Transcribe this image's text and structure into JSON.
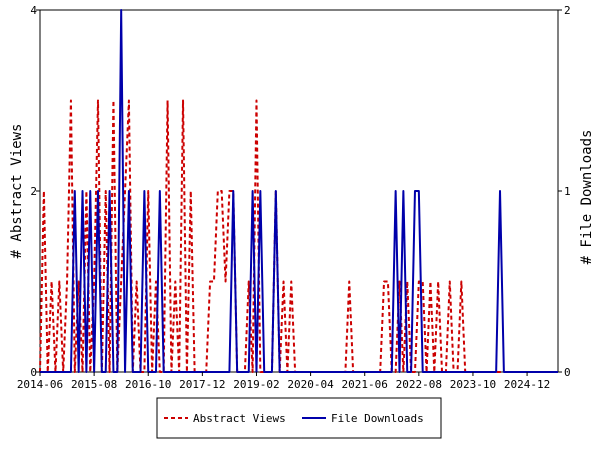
{
  "chart_data": {
    "type": "line",
    "x_ticks": [
      "2014-06",
      "2015-08",
      "2016-10",
      "2017-12",
      "2019-02",
      "2020-04",
      "2021-06",
      "2022-08",
      "2023-10",
      "2024-12"
    ],
    "x_range": [
      "2014-06",
      "2025-08"
    ],
    "y_left": {
      "label": "# Abstract Views",
      "ticks": [
        "0",
        "2",
        "4"
      ],
      "range": [
        0,
        4
      ]
    },
    "y_right": {
      "label": "# File Downloads",
      "ticks": [
        "0",
        "1",
        "2"
      ],
      "range": [
        0,
        2
      ]
    },
    "grid": false,
    "legend_position": "bottom-center",
    "series": [
      {
        "name": "Abstract Views",
        "axis": "left",
        "color": "#cc0000",
        "style": "dashed",
        "points": [
          [
            "2014-06",
            0
          ],
          [
            "2014-07",
            2
          ],
          [
            "2014-08",
            0
          ],
          [
            "2014-09",
            1
          ],
          [
            "2014-10",
            0
          ],
          [
            "2014-11",
            1
          ],
          [
            "2014-12",
            0
          ],
          [
            "2015-01",
            1
          ],
          [
            "2015-02",
            3
          ],
          [
            "2015-03",
            0
          ],
          [
            "2015-04",
            1
          ],
          [
            "2015-05",
            0
          ],
          [
            "2015-06",
            2
          ],
          [
            "2015-07",
            0
          ],
          [
            "2015-08",
            1
          ],
          [
            "2015-09",
            3
          ],
          [
            "2015-10",
            0
          ],
          [
            "2015-11",
            2
          ],
          [
            "2015-12",
            0
          ],
          [
            "2016-01",
            3
          ],
          [
            "2016-02",
            0
          ],
          [
            "2016-03",
            1
          ],
          [
            "2016-04",
            2
          ],
          [
            "2016-05",
            3
          ],
          [
            "2016-06",
            0
          ],
          [
            "2016-07",
            1
          ],
          [
            "2016-08",
            0
          ],
          [
            "2016-09",
            0
          ],
          [
            "2016-10",
            2
          ],
          [
            "2016-11",
            0
          ],
          [
            "2016-12",
            1
          ],
          [
            "2017-01",
            0
          ],
          [
            "2017-02",
            0
          ],
          [
            "2017-03",
            3
          ],
          [
            "2017-04",
            0
          ],
          [
            "2017-05",
            1
          ],
          [
            "2017-06",
            0
          ],
          [
            "2017-07",
            3
          ],
          [
            "2017-08",
            0
          ],
          [
            "2017-09",
            2
          ],
          [
            "2017-10",
            0
          ],
          [
            "2017-11",
            0
          ],
          [
            "2017-12",
            0
          ],
          [
            "2018-01",
            0
          ],
          [
            "2018-02",
            1
          ],
          [
            "2018-03",
            1
          ],
          [
            "2018-04",
            2
          ],
          [
            "2018-05",
            2
          ],
          [
            "2018-06",
            1
          ],
          [
            "2018-07",
            2
          ],
          [
            "2018-08",
            2
          ],
          [
            "2018-09",
            0
          ],
          [
            "2018-10",
            0
          ],
          [
            "2018-11",
            0
          ],
          [
            "2018-12",
            1
          ],
          [
            "2019-01",
            0
          ],
          [
            "2019-02",
            3
          ],
          [
            "2019-03",
            0
          ],
          [
            "2019-04",
            0
          ],
          [
            "2019-05",
            0
          ],
          [
            "2019-06",
            0
          ],
          [
            "2019-07",
            2
          ],
          [
            "2019-08",
            0
          ],
          [
            "2019-09",
            1
          ],
          [
            "2019-10",
            0
          ],
          [
            "2019-11",
            1
          ],
          [
            "2019-12",
            0
          ],
          [
            "2020-01",
            0
          ],
          [
            "2020-02",
            0
          ],
          [
            "2020-03",
            0
          ],
          [
            "2020-04",
            0
          ],
          [
            "2020-05",
            0
          ],
          [
            "2020-06",
            0
          ],
          [
            "2020-07",
            0
          ],
          [
            "2020-08",
            0
          ],
          [
            "2020-09",
            0
          ],
          [
            "2020-10",
            0
          ],
          [
            "2020-11",
            0
          ],
          [
            "2020-12",
            0
          ],
          [
            "2021-01",
            0
          ],
          [
            "2021-02",
            1
          ],
          [
            "2021-03",
            0
          ],
          [
            "2021-04",
            0
          ],
          [
            "2021-05",
            0
          ],
          [
            "2021-06",
            0
          ],
          [
            "2021-07",
            0
          ],
          [
            "2021-08",
            0
          ],
          [
            "2021-09",
            0
          ],
          [
            "2021-10",
            0
          ],
          [
            "2021-11",
            1
          ],
          [
            "2021-12",
            1
          ],
          [
            "2022-01",
            0
          ],
          [
            "2022-02",
            0
          ],
          [
            "2022-03",
            1
          ],
          [
            "2022-04",
            0
          ],
          [
            "2022-05",
            1
          ],
          [
            "2022-06",
            0
          ],
          [
            "2022-07",
            0
          ],
          [
            "2022-08",
            1
          ],
          [
            "2022-09",
            1
          ],
          [
            "2022-10",
            0
          ],
          [
            "2022-11",
            1
          ],
          [
            "2022-12",
            0
          ],
          [
            "2023-01",
            1
          ],
          [
            "2023-02",
            0
          ],
          [
            "2023-03",
            0
          ],
          [
            "2023-04",
            1
          ],
          [
            "2023-05",
            0
          ],
          [
            "2023-06",
            0
          ],
          [
            "2023-07",
            1
          ],
          [
            "2023-08",
            0
          ],
          [
            "2023-09",
            0
          ],
          [
            "2023-10",
            0
          ],
          [
            "2023-11",
            0
          ],
          [
            "2023-12",
            0
          ],
          [
            "2024-01",
            0
          ],
          [
            "2024-02",
            0
          ],
          [
            "2024-03",
            0
          ],
          [
            "2024-04",
            0
          ],
          [
            "2024-05",
            0
          ],
          [
            "2024-06",
            0
          ],
          [
            "2024-07",
            0
          ],
          [
            "2024-08",
            0
          ],
          [
            "2024-09",
            0
          ],
          [
            "2024-10",
            0
          ],
          [
            "2024-11",
            0
          ],
          [
            "2024-12",
            0
          ],
          [
            "2025-01",
            0
          ],
          [
            "2025-02",
            0
          ],
          [
            "2025-03",
            0
          ],
          [
            "2025-04",
            0
          ],
          [
            "2025-05",
            0
          ],
          [
            "2025-06",
            0
          ],
          [
            "2025-07",
            0
          ],
          [
            "2025-08",
            0
          ]
        ]
      },
      {
        "name": "File Downloads",
        "axis": "right",
        "color": "#0000aa",
        "style": "solid",
        "points": [
          [
            "2014-06",
            0
          ],
          [
            "2014-07",
            0
          ],
          [
            "2014-08",
            0
          ],
          [
            "2014-09",
            0
          ],
          [
            "2014-10",
            0
          ],
          [
            "2014-11",
            0
          ],
          [
            "2014-12",
            0
          ],
          [
            "2015-01",
            0
          ],
          [
            "2015-02",
            0
          ],
          [
            "2015-03",
            1
          ],
          [
            "2015-04",
            0
          ],
          [
            "2015-05",
            1
          ],
          [
            "2015-06",
            0
          ],
          [
            "2015-07",
            1
          ],
          [
            "2015-08",
            0
          ],
          [
            "2015-09",
            1
          ],
          [
            "2015-10",
            0
          ],
          [
            "2015-11",
            0
          ],
          [
            "2015-12",
            1
          ],
          [
            "2016-01",
            0
          ],
          [
            "2016-02",
            0
          ],
          [
            "2016-03",
            2
          ],
          [
            "2016-04",
            0
          ],
          [
            "2016-05",
            1
          ],
          [
            "2016-06",
            0
          ],
          [
            "2016-07",
            0
          ],
          [
            "2016-08",
            0
          ],
          [
            "2016-09",
            1
          ],
          [
            "2016-10",
            0
          ],
          [
            "2016-11",
            0
          ],
          [
            "2016-12",
            0
          ],
          [
            "2017-01",
            1
          ],
          [
            "2017-02",
            0
          ],
          [
            "2017-03",
            0
          ],
          [
            "2017-04",
            0
          ],
          [
            "2017-05",
            0
          ],
          [
            "2017-06",
            0
          ],
          [
            "2017-07",
            0
          ],
          [
            "2017-08",
            0
          ],
          [
            "2017-09",
            0
          ],
          [
            "2017-10",
            0
          ],
          [
            "2017-11",
            0
          ],
          [
            "2017-12",
            0
          ],
          [
            "2018-01",
            0
          ],
          [
            "2018-02",
            0
          ],
          [
            "2018-03",
            0
          ],
          [
            "2018-04",
            0
          ],
          [
            "2018-05",
            0
          ],
          [
            "2018-06",
            0
          ],
          [
            "2018-07",
            0
          ],
          [
            "2018-08",
            1
          ],
          [
            "2018-09",
            0
          ],
          [
            "2018-10",
            0
          ],
          [
            "2018-11",
            0
          ],
          [
            "2018-12",
            0
          ],
          [
            "2019-01",
            1
          ],
          [
            "2019-02",
            0
          ],
          [
            "2019-03",
            1
          ],
          [
            "2019-04",
            0
          ],
          [
            "2019-05",
            0
          ],
          [
            "2019-06",
            0
          ],
          [
            "2019-07",
            1
          ],
          [
            "2019-08",
            0
          ],
          [
            "2019-09",
            0
          ],
          [
            "2019-10",
            0
          ],
          [
            "2019-11",
            0
          ],
          [
            "2019-12",
            0
          ],
          [
            "2020-01",
            0
          ],
          [
            "2020-02",
            0
          ],
          [
            "2020-03",
            0
          ],
          [
            "2020-04",
            0
          ],
          [
            "2020-05",
            0
          ],
          [
            "2020-06",
            0
          ],
          [
            "2020-07",
            0
          ],
          [
            "2020-08",
            0
          ],
          [
            "2020-09",
            0
          ],
          [
            "2020-10",
            0
          ],
          [
            "2020-11",
            0
          ],
          [
            "2020-12",
            0
          ],
          [
            "2021-01",
            0
          ],
          [
            "2021-02",
            0
          ],
          [
            "2021-03",
            0
          ],
          [
            "2021-04",
            0
          ],
          [
            "2021-05",
            0
          ],
          [
            "2021-06",
            0
          ],
          [
            "2021-07",
            0
          ],
          [
            "2021-08",
            0
          ],
          [
            "2021-09",
            0
          ],
          [
            "2021-10",
            0
          ],
          [
            "2021-11",
            0
          ],
          [
            "2021-12",
            0
          ],
          [
            "2022-01",
            0
          ],
          [
            "2022-02",
            1
          ],
          [
            "2022-03",
            0
          ],
          [
            "2022-04",
            1
          ],
          [
            "2022-05",
            0
          ],
          [
            "2022-06",
            0
          ],
          [
            "2022-07",
            1
          ],
          [
            "2022-08",
            1
          ],
          [
            "2022-09",
            0
          ],
          [
            "2022-10",
            0
          ],
          [
            "2022-11",
            0
          ],
          [
            "2022-12",
            0
          ],
          [
            "2023-01",
            0
          ],
          [
            "2023-02",
            0
          ],
          [
            "2023-03",
            0
          ],
          [
            "2023-04",
            0
          ],
          [
            "2023-05",
            0
          ],
          [
            "2023-06",
            0
          ],
          [
            "2023-07",
            0
          ],
          [
            "2023-08",
            0
          ],
          [
            "2023-09",
            0
          ],
          [
            "2023-10",
            0
          ],
          [
            "2023-11",
            0
          ],
          [
            "2023-12",
            0
          ],
          [
            "2024-01",
            0
          ],
          [
            "2024-02",
            0
          ],
          [
            "2024-03",
            0
          ],
          [
            "2024-04",
            0
          ],
          [
            "2024-05",
            1
          ],
          [
            "2024-06",
            0
          ],
          [
            "2024-07",
            0
          ],
          [
            "2024-08",
            0
          ],
          [
            "2024-09",
            0
          ],
          [
            "2024-10",
            0
          ],
          [
            "2024-11",
            0
          ],
          [
            "2024-12",
            0
          ],
          [
            "2025-01",
            0
          ],
          [
            "2025-02",
            0
          ],
          [
            "2025-03",
            0
          ],
          [
            "2025-04",
            0
          ],
          [
            "2025-05",
            0
          ],
          [
            "2025-06",
            0
          ],
          [
            "2025-07",
            0
          ],
          [
            "2025-08",
            0
          ]
        ]
      }
    ]
  }
}
